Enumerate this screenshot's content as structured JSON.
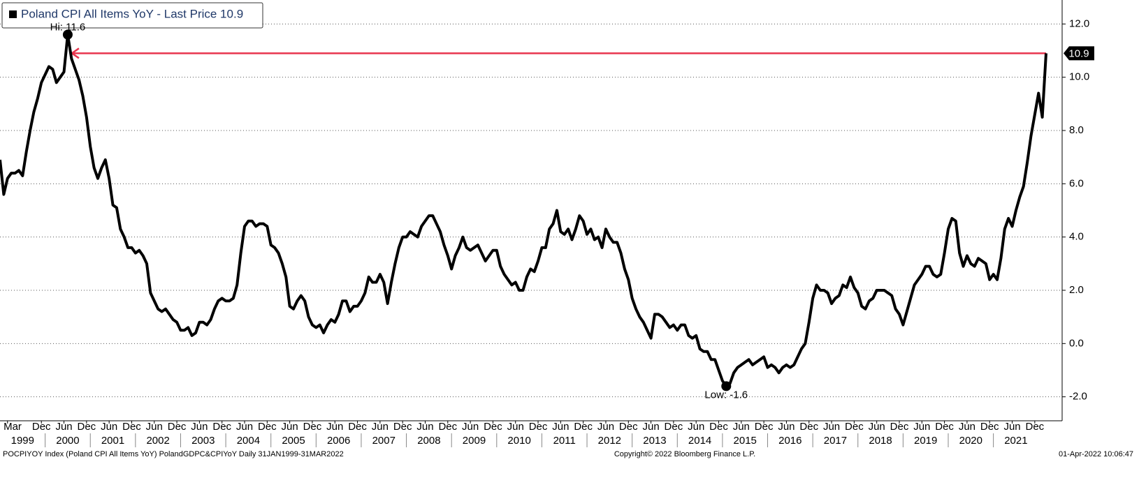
{
  "chart_data": {
    "type": "line",
    "x": [
      "1999-01",
      "1999-02",
      "1999-03",
      "1999-04",
      "1999-05",
      "1999-06",
      "1999-07",
      "1999-08",
      "1999-09",
      "1999-10",
      "1999-11",
      "1999-12",
      "2000-01",
      "2000-02",
      "2000-03",
      "2000-04",
      "2000-05",
      "2000-06",
      "2000-07",
      "2000-08",
      "2000-09",
      "2000-10",
      "2000-11",
      "2000-12",
      "2001-01",
      "2001-02",
      "2001-03",
      "2001-04",
      "2001-05",
      "2001-06",
      "2001-07",
      "2001-08",
      "2001-09",
      "2001-10",
      "2001-11",
      "2001-12",
      "2002-01",
      "2002-02",
      "2002-03",
      "2002-04",
      "2002-05",
      "2002-06",
      "2002-07",
      "2002-08",
      "2002-09",
      "2002-10",
      "2002-11",
      "2002-12",
      "2003-01",
      "2003-02",
      "2003-03",
      "2003-04",
      "2003-05",
      "2003-06",
      "2003-07",
      "2003-08",
      "2003-09",
      "2003-10",
      "2003-11",
      "2003-12",
      "2004-01",
      "2004-02",
      "2004-03",
      "2004-04",
      "2004-05",
      "2004-06",
      "2004-07",
      "2004-08",
      "2004-09",
      "2004-10",
      "2004-11",
      "2004-12",
      "2005-01",
      "2005-02",
      "2005-03",
      "2005-04",
      "2005-05",
      "2005-06",
      "2005-07",
      "2005-08",
      "2005-09",
      "2005-10",
      "2005-11",
      "2005-12",
      "2006-01",
      "2006-02",
      "2006-03",
      "2006-04",
      "2006-05",
      "2006-06",
      "2006-07",
      "2006-08",
      "2006-09",
      "2006-10",
      "2006-11",
      "2006-12",
      "2007-01",
      "2007-02",
      "2007-03",
      "2007-04",
      "2007-05",
      "2007-06",
      "2007-07",
      "2007-08",
      "2007-09",
      "2007-10",
      "2007-11",
      "2007-12",
      "2008-01",
      "2008-02",
      "2008-03",
      "2008-04",
      "2008-05",
      "2008-06",
      "2008-07",
      "2008-08",
      "2008-09",
      "2008-10",
      "2008-11",
      "2008-12",
      "2009-01",
      "2009-02",
      "2009-03",
      "2009-04",
      "2009-05",
      "2009-06",
      "2009-07",
      "2009-08",
      "2009-09",
      "2009-10",
      "2009-11",
      "2009-12",
      "2010-01",
      "2010-02",
      "2010-03",
      "2010-04",
      "2010-05",
      "2010-06",
      "2010-07",
      "2010-08",
      "2010-09",
      "2010-10",
      "2010-11",
      "2010-12",
      "2011-01",
      "2011-02",
      "2011-03",
      "2011-04",
      "2011-05",
      "2011-06",
      "2011-07",
      "2011-08",
      "2011-09",
      "2011-10",
      "2011-11",
      "2011-12",
      "2012-01",
      "2012-02",
      "2012-03",
      "2012-04",
      "2012-05",
      "2012-06",
      "2012-07",
      "2012-08",
      "2012-09",
      "2012-10",
      "2012-11",
      "2012-12",
      "2013-01",
      "2013-02",
      "2013-03",
      "2013-04",
      "2013-05",
      "2013-06",
      "2013-07",
      "2013-08",
      "2013-09",
      "2013-10",
      "2013-11",
      "2013-12",
      "2014-01",
      "2014-02",
      "2014-03",
      "2014-04",
      "2014-05",
      "2014-06",
      "2014-07",
      "2014-08",
      "2014-09",
      "2014-10",
      "2014-11",
      "2014-12",
      "2015-01",
      "2015-02",
      "2015-03",
      "2015-04",
      "2015-05",
      "2015-06",
      "2015-07",
      "2015-08",
      "2015-09",
      "2015-10",
      "2015-11",
      "2015-12",
      "2016-01",
      "2016-02",
      "2016-03",
      "2016-04",
      "2016-05",
      "2016-06",
      "2016-07",
      "2016-08",
      "2016-09",
      "2016-10",
      "2016-11",
      "2016-12",
      "2017-01",
      "2017-02",
      "2017-03",
      "2017-04",
      "2017-05",
      "2017-06",
      "2017-07",
      "2017-08",
      "2017-09",
      "2017-10",
      "2017-11",
      "2017-12",
      "2018-01",
      "2018-02",
      "2018-03",
      "2018-04",
      "2018-05",
      "2018-06",
      "2018-07",
      "2018-08",
      "2018-09",
      "2018-10",
      "2018-11",
      "2018-12",
      "2019-01",
      "2019-02",
      "2019-03",
      "2019-04",
      "2019-05",
      "2019-06",
      "2019-07",
      "2019-08",
      "2019-09",
      "2019-10",
      "2019-11",
      "2019-12",
      "2020-01",
      "2020-02",
      "2020-03",
      "2020-04",
      "2020-05",
      "2020-06",
      "2020-07",
      "2020-08",
      "2020-09",
      "2020-10",
      "2020-11",
      "2020-12",
      "2021-01",
      "2021-02",
      "2021-03",
      "2021-04",
      "2021-05",
      "2021-06",
      "2021-07",
      "2021-08",
      "2021-09",
      "2021-10",
      "2021-11",
      "2021-12",
      "2022-01",
      "2022-02",
      "2022-03"
    ],
    "series": [
      {
        "name": "Poland CPI All Items YoY - Last Price 10.9",
        "color": "#000000",
        "values": [
          6.9,
          5.6,
          6.2,
          6.4,
          6.4,
          6.5,
          6.3,
          7.2,
          8.0,
          8.7,
          9.2,
          9.8,
          10.1,
          10.4,
          10.3,
          9.8,
          10.0,
          10.2,
          11.6,
          10.7,
          10.3,
          9.9,
          9.3,
          8.5,
          7.4,
          6.6,
          6.2,
          6.6,
          6.9,
          6.2,
          5.2,
          5.1,
          4.3,
          4.0,
          3.6,
          3.6,
          3.4,
          3.5,
          3.3,
          3.0,
          1.9,
          1.6,
          1.3,
          1.2,
          1.3,
          1.1,
          0.9,
          0.8,
          0.5,
          0.5,
          0.6,
          0.3,
          0.4,
          0.8,
          0.8,
          0.7,
          0.9,
          1.3,
          1.6,
          1.7,
          1.6,
          1.6,
          1.7,
          2.2,
          3.4,
          4.4,
          4.6,
          4.6,
          4.4,
          4.5,
          4.5,
          4.4,
          3.7,
          3.6,
          3.4,
          3.0,
          2.5,
          1.4,
          1.3,
          1.6,
          1.8,
          1.6,
          1.0,
          0.7,
          0.6,
          0.7,
          0.4,
          0.7,
          0.9,
          0.8,
          1.1,
          1.6,
          1.6,
          1.2,
          1.4,
          1.4,
          1.6,
          1.9,
          2.5,
          2.3,
          2.3,
          2.6,
          2.3,
          1.5,
          2.3,
          3.0,
          3.6,
          4.0,
          4.0,
          4.2,
          4.1,
          4.0,
          4.4,
          4.6,
          4.8,
          4.8,
          4.5,
          4.2,
          3.7,
          3.3,
          2.8,
          3.3,
          3.6,
          4.0,
          3.6,
          3.5,
          3.6,
          3.7,
          3.4,
          3.1,
          3.3,
          3.5,
          3.5,
          2.9,
          2.6,
          2.4,
          2.2,
          2.3,
          2.0,
          2.0,
          2.5,
          2.8,
          2.7,
          3.1,
          3.6,
          3.6,
          4.3,
          4.5,
          5.0,
          4.2,
          4.1,
          4.3,
          3.9,
          4.3,
          4.8,
          4.6,
          4.1,
          4.3,
          3.9,
          4.0,
          3.6,
          4.3,
          4.0,
          3.8,
          3.8,
          3.4,
          2.8,
          2.4,
          1.7,
          1.3,
          1.0,
          0.8,
          0.5,
          0.2,
          1.1,
          1.1,
          1.0,
          0.8,
          0.6,
          0.7,
          0.5,
          0.7,
          0.7,
          0.3,
          0.2,
          0.3,
          -0.2,
          -0.3,
          -0.3,
          -0.6,
          -0.6,
          -1.0,
          -1.4,
          -1.6,
          -1.5,
          -1.1,
          -0.9,
          -0.8,
          -0.7,
          -0.6,
          -0.8,
          -0.7,
          -0.6,
          -0.5,
          -0.9,
          -0.8,
          -0.9,
          -1.1,
          -0.9,
          -0.8,
          -0.9,
          -0.8,
          -0.5,
          -0.2,
          0.0,
          0.8,
          1.7,
          2.2,
          2.0,
          2.0,
          1.9,
          1.5,
          1.7,
          1.8,
          2.2,
          2.1,
          2.5,
          2.1,
          1.9,
          1.4,
          1.3,
          1.6,
          1.7,
          2.0,
          2.0,
          2.0,
          1.9,
          1.8,
          1.3,
          1.1,
          0.7,
          1.2,
          1.7,
          2.2,
          2.4,
          2.6,
          2.9,
          2.9,
          2.6,
          2.5,
          2.6,
          3.4,
          4.3,
          4.7,
          4.6,
          3.4,
          2.9,
          3.3,
          3.0,
          2.9,
          3.2,
          3.1,
          3.0,
          2.4,
          2.6,
          2.4,
          3.2,
          4.3,
          4.7,
          4.4,
          5.0,
          5.5,
          5.9,
          6.8,
          7.8,
          8.6,
          9.4,
          8.5,
          10.9
        ]
      }
    ],
    "xlim": [
      "1999-01",
      "2022-03"
    ],
    "ylim": [
      -2.9,
      12.9
    ],
    "yticks": [
      {
        "value": -2,
        "label": "-2.0"
      },
      {
        "value": 0,
        "label": "0.0"
      },
      {
        "value": 2,
        "label": "2.0"
      },
      {
        "value": 4,
        "label": "4.0"
      },
      {
        "value": 6,
        "label": "6.0"
      },
      {
        "value": 8,
        "label": "8.0"
      },
      {
        "value": 10,
        "label": "10.0"
      },
      {
        "value": 12,
        "label": "12.0"
      }
    ],
    "xticks": [
      {
        "value": "1999-03",
        "label": "Mar"
      },
      {
        "value": "1999-12",
        "label": "Dec"
      },
      {
        "value": "2000-06",
        "label": "Jun"
      },
      {
        "value": "2000-12",
        "label": "Dec"
      },
      {
        "value": "2001-06",
        "label": "Jun"
      },
      {
        "value": "2001-12",
        "label": "Dec"
      },
      {
        "value": "2002-06",
        "label": "Jun"
      },
      {
        "value": "2002-12",
        "label": "Dec"
      },
      {
        "value": "2003-06",
        "label": "Jun"
      },
      {
        "value": "2003-12",
        "label": "Dec"
      },
      {
        "value": "2004-06",
        "label": "Jun"
      },
      {
        "value": "2004-12",
        "label": "Dec"
      },
      {
        "value": "2005-06",
        "label": "Jun"
      },
      {
        "value": "2005-12",
        "label": "Dec"
      },
      {
        "value": "2006-06",
        "label": "Jun"
      },
      {
        "value": "2006-12",
        "label": "Dec"
      },
      {
        "value": "2007-06",
        "label": "Jun"
      },
      {
        "value": "2007-12",
        "label": "Dec"
      },
      {
        "value": "2008-06",
        "label": "Jun"
      },
      {
        "value": "2008-12",
        "label": "Dec"
      },
      {
        "value": "2009-06",
        "label": "Jun"
      },
      {
        "value": "2009-12",
        "label": "Dec"
      },
      {
        "value": "2010-06",
        "label": "Jun"
      },
      {
        "value": "2010-12",
        "label": "Dec"
      },
      {
        "value": "2011-06",
        "label": "Jun"
      },
      {
        "value": "2011-12",
        "label": "Dec"
      },
      {
        "value": "2012-06",
        "label": "Jun"
      },
      {
        "value": "2012-12",
        "label": "Dec"
      },
      {
        "value": "2013-06",
        "label": "Jun"
      },
      {
        "value": "2013-12",
        "label": "Dec"
      },
      {
        "value": "2014-06",
        "label": "Jun"
      },
      {
        "value": "2014-12",
        "label": "Dec"
      },
      {
        "value": "2015-06",
        "label": "Jun"
      },
      {
        "value": "2015-12",
        "label": "Dec"
      },
      {
        "value": "2016-06",
        "label": "Jun"
      },
      {
        "value": "2016-12",
        "label": "Dec"
      },
      {
        "value": "2017-06",
        "label": "Jun"
      },
      {
        "value": "2017-12",
        "label": "Dec"
      },
      {
        "value": "2018-06",
        "label": "Jun"
      },
      {
        "value": "2018-12",
        "label": "Dec"
      },
      {
        "value": "2019-06",
        "label": "Jun"
      },
      {
        "value": "2019-12",
        "label": "Dec"
      },
      {
        "value": "2020-06",
        "label": "Jun"
      },
      {
        "value": "2020-12",
        "label": "Dec"
      },
      {
        "value": "2021-06",
        "label": "Jun"
      },
      {
        "value": "2021-12",
        "label": "Dec"
      }
    ],
    "year_labels": [
      1999,
      2000,
      2001,
      2002,
      2003,
      2004,
      2005,
      2006,
      2007,
      2008,
      2009,
      2010,
      2011,
      2012,
      2013,
      2014,
      2015,
      2016,
      2017,
      2018,
      2019,
      2020,
      2021
    ],
    "grid": true,
    "annotations": [
      {
        "label": "Hi: 11.6",
        "x": "2000-07",
        "value": 11.6,
        "position": "above"
      },
      {
        "label": "Low: -1.6",
        "x": "2015-02",
        "value": -1.6,
        "position": "below"
      }
    ],
    "last_value_label": {
      "value": 10.9,
      "label": "10.9"
    },
    "arrow_color": "#e8354d"
  },
  "footer": {
    "left": "POCPIYOY Index (Poland CPI All Items YoY) PolandGDPC&CPIYoY  Daily 31JAN1999-31MAR2022",
    "center": "Copyright© 2022 Bloomberg Finance L.P.",
    "right": "01-Apr-2022 10:06:47"
  }
}
